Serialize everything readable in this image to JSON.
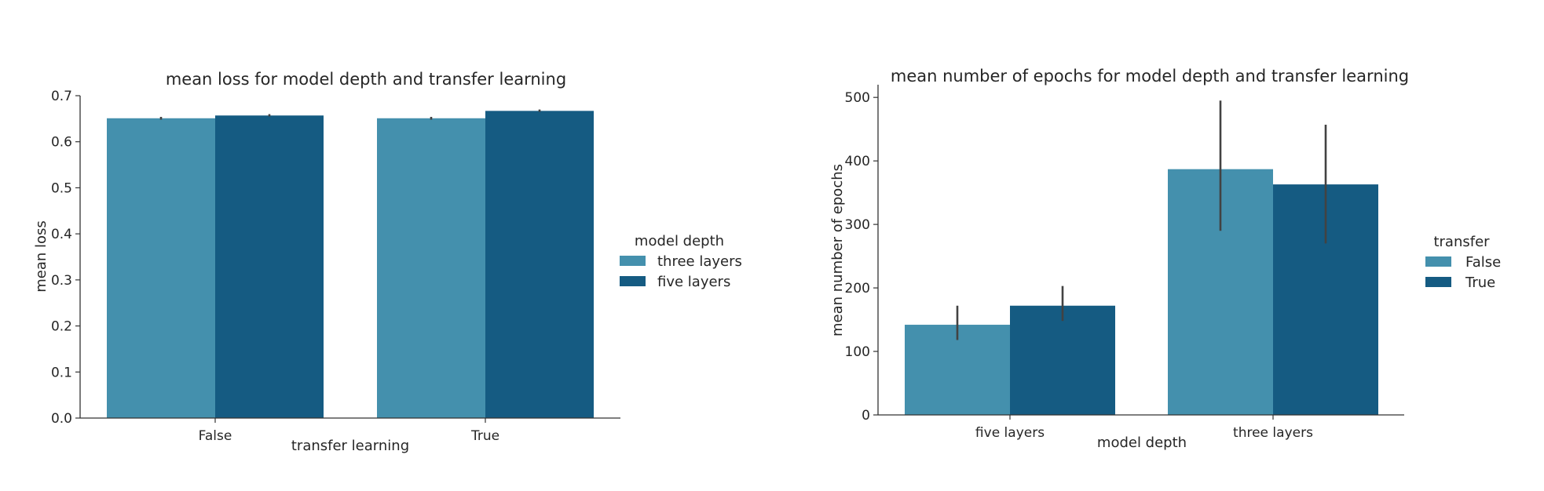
{
  "chart_data": [
    {
      "type": "bar",
      "title": "mean loss for model depth and transfer learning",
      "xlabel": "transfer learning",
      "ylabel": "mean loss",
      "categories": [
        "False",
        "True"
      ],
      "ylim": [
        0,
        0.7
      ],
      "yticks": [
        "0.0",
        "0.1",
        "0.2",
        "0.3",
        "0.4",
        "0.5",
        "0.6",
        "0.7"
      ],
      "legend_title": "model depth",
      "legend_position": "right",
      "grid": false,
      "series": [
        {
          "name": "three layers",
          "color": "#4490ad",
          "values": [
            0.651,
            0.651
          ],
          "err_low": [
            0.648,
            0.648
          ],
          "err_high": [
            0.654,
            0.654
          ]
        },
        {
          "name": "five layers",
          "color": "#155b82",
          "values": [
            0.657,
            0.667
          ],
          "err_low": [
            0.655,
            0.665
          ],
          "err_high": [
            0.66,
            0.67
          ]
        }
      ]
    },
    {
      "type": "bar",
      "title": "mean number of epochs for model depth and transfer learning",
      "xlabel": "model depth",
      "ylabel": "mean number of epochs",
      "categories": [
        "five layers",
        "three layers"
      ],
      "ylim": [
        0,
        520
      ],
      "yticks": [
        "0",
        "100",
        "200",
        "300",
        "400",
        "500"
      ],
      "legend_title": "transfer",
      "legend_position": "right",
      "grid": false,
      "series": [
        {
          "name": "False",
          "color": "#4490ad",
          "values": [
            142,
            387
          ],
          "err_low": [
            118,
            290
          ],
          "err_high": [
            172,
            495
          ]
        },
        {
          "name": "True",
          "color": "#155b82",
          "values": [
            172,
            363
          ],
          "err_low": [
            148,
            270
          ],
          "err_high": [
            203,
            457
          ]
        }
      ]
    }
  ]
}
